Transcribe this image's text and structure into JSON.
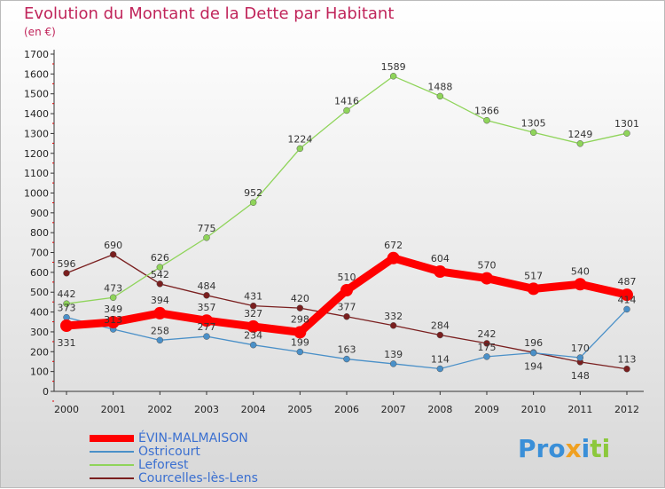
{
  "title": "Evolution du Montant de la Dette par Habitant",
  "unit": "(en €)",
  "logo": "Proxiti",
  "chart_data": {
    "type": "line",
    "title": "Evolution du Montant de la Dette par Habitant",
    "ylabel": "(en €)",
    "x": [
      2000,
      2001,
      2002,
      2003,
      2004,
      2005,
      2006,
      2007,
      2008,
      2009,
      2010,
      2011,
      2012
    ],
    "ylim": [
      0,
      1700
    ],
    "yticks": [
      0,
      100,
      200,
      300,
      400,
      500,
      600,
      700,
      800,
      900,
      1000,
      1100,
      1200,
      1300,
      1400,
      1500,
      1600,
      1700
    ],
    "legend": "bottom-left",
    "series": [
      {
        "name": "ÉVIN-MALMAISON",
        "color": "#ff0000",
        "values": [
          331,
          349,
          394,
          357,
          327,
          298,
          510,
          672,
          604,
          570,
          517,
          540,
          487
        ]
      },
      {
        "name": "Ostricourt",
        "color": "#4a90c8",
        "values": [
          373,
          313,
          258,
          277,
          234,
          199,
          163,
          139,
          114,
          175,
          194,
          170,
          414
        ]
      },
      {
        "name": "Leforest",
        "color": "#8fd45a",
        "values": [
          442,
          473,
          626,
          775,
          952,
          1224,
          1416,
          1589,
          1488,
          1366,
          1305,
          1249,
          1301
        ]
      },
      {
        "name": "Courcelles-lès-Lens",
        "color": "#7a1f1f",
        "values": [
          596,
          690,
          542,
          484,
          431,
          420,
          377,
          332,
          284,
          242,
          196,
          148,
          113
        ]
      }
    ]
  }
}
